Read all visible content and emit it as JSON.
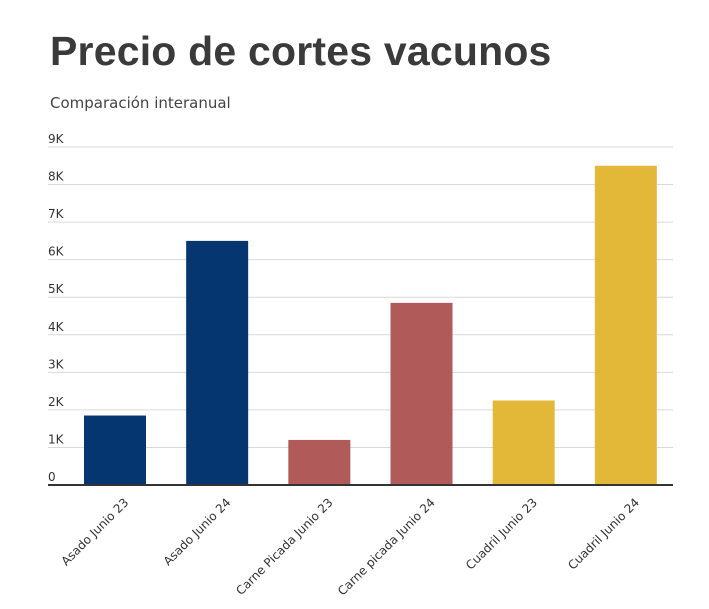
{
  "header": {
    "title": "Precio de cortes vacunos",
    "subtitle": "Comparación interanual"
  },
  "chart_data": {
    "type": "bar",
    "title": "Precio de cortes vacunos",
    "subtitle": "Comparación interanual",
    "xlabel": "",
    "ylabel": "",
    "categories": [
      "Asado Junio 23",
      "Asado Junio 24",
      "Carne Picada Junio 23",
      "Carne picada Junio 24",
      "Cuadril Junio 23",
      "Cuadril Junio 24"
    ],
    "values": [
      1850,
      6500,
      1200,
      4850,
      2250,
      8500
    ],
    "colors": [
      "#06366f",
      "#06366f",
      "#b05a59",
      "#b05a59",
      "#e3b839",
      "#e3b839"
    ],
    "ylim": [
      0,
      9000
    ],
    "yticks": [
      0,
      1000,
      2000,
      3000,
      4000,
      5000,
      6000,
      7000,
      8000,
      9000
    ],
    "ytick_labels": [
      "0",
      "1K",
      "2K",
      "3K",
      "4K",
      "5K",
      "6K",
      "7K",
      "8K",
      "9K"
    ],
    "grid": true,
    "gridline_color": "#d9d9d9",
    "axis_color": "#333333"
  }
}
